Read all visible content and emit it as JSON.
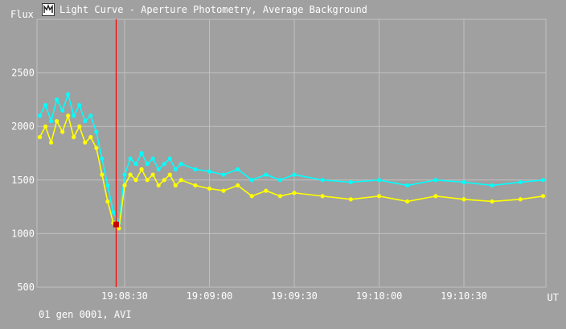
{
  "window": {
    "title": "Light Curve - Aperture Photometry, Average Background"
  },
  "footer": {
    "status": "01 gen 0001, AVI"
  },
  "colors": {
    "background": "#a0a0a0",
    "grid": "#c0c0c0",
    "series_primary": "#ffff00",
    "series_secondary": "#00ffff",
    "cursor_line": "#ff0000",
    "cursor_point": "#cc0000"
  },
  "chart_data": {
    "type": "scatter",
    "xlabel": "UT",
    "ylabel": "Flux",
    "x_ticks": [
      "19:08:30",
      "19:09:00",
      "19:09:30",
      "19:10:00",
      "19:10:30"
    ],
    "x_range": [
      "19:07:59",
      "19:10:59"
    ],
    "y_ticks": [
      500,
      1000,
      1500,
      2000,
      2500
    ],
    "ylim": [
      500,
      3000
    ],
    "grid": true,
    "cursor": {
      "time": "19:08:27",
      "flux": 1085
    },
    "series": [
      {
        "color": "#00ffff",
        "points": [
          [
            "19:08:00",
            2100
          ],
          [
            "19:08:02",
            2200
          ],
          [
            "19:08:04",
            2050
          ],
          [
            "19:08:06",
            2250
          ],
          [
            "19:08:08",
            2150
          ],
          [
            "19:08:10",
            2300
          ],
          [
            "19:08:12",
            2100
          ],
          [
            "19:08:14",
            2200
          ],
          [
            "19:08:16",
            2050
          ],
          [
            "19:08:18",
            2100
          ],
          [
            "19:08:20",
            1950
          ],
          [
            "19:08:22",
            1700
          ],
          [
            "19:08:24",
            1450
          ],
          [
            "19:08:26",
            1200
          ],
          [
            "19:08:28",
            1100
          ],
          [
            "19:08:30",
            1550
          ],
          [
            "19:08:32",
            1700
          ],
          [
            "19:08:34",
            1650
          ],
          [
            "19:08:36",
            1750
          ],
          [
            "19:08:38",
            1650
          ],
          [
            "19:08:40",
            1700
          ],
          [
            "19:08:42",
            1600
          ],
          [
            "19:08:44",
            1650
          ],
          [
            "19:08:46",
            1700
          ],
          [
            "19:08:48",
            1600
          ],
          [
            "19:08:50",
            1650
          ],
          [
            "19:08:55",
            1600
          ],
          [
            "19:09:00",
            1580
          ],
          [
            "19:09:05",
            1550
          ],
          [
            "19:09:10",
            1600
          ],
          [
            "19:09:15",
            1500
          ],
          [
            "19:09:20",
            1550
          ],
          [
            "19:09:25",
            1500
          ],
          [
            "19:09:30",
            1550
          ],
          [
            "19:09:40",
            1500
          ],
          [
            "19:09:50",
            1480
          ],
          [
            "19:10:00",
            1500
          ],
          [
            "19:10:10",
            1450
          ],
          [
            "19:10:20",
            1500
          ],
          [
            "19:10:30",
            1480
          ],
          [
            "19:10:40",
            1450
          ],
          [
            "19:10:50",
            1480
          ],
          [
            "19:10:58",
            1500
          ]
        ]
      },
      {
        "color": "#ffff00",
        "points": [
          [
            "19:08:00",
            1900
          ],
          [
            "19:08:02",
            2000
          ],
          [
            "19:08:04",
            1850
          ],
          [
            "19:08:06",
            2050
          ],
          [
            "19:08:08",
            1950
          ],
          [
            "19:08:10",
            2100
          ],
          [
            "19:08:12",
            1900
          ],
          [
            "19:08:14",
            2000
          ],
          [
            "19:08:16",
            1850
          ],
          [
            "19:08:18",
            1900
          ],
          [
            "19:08:20",
            1800
          ],
          [
            "19:08:22",
            1550
          ],
          [
            "19:08:24",
            1300
          ],
          [
            "19:08:26",
            1100
          ],
          [
            "19:08:28",
            1050
          ],
          [
            "19:08:30",
            1450
          ],
          [
            "19:08:32",
            1550
          ],
          [
            "19:08:34",
            1500
          ],
          [
            "19:08:36",
            1600
          ],
          [
            "19:08:38",
            1500
          ],
          [
            "19:08:40",
            1550
          ],
          [
            "19:08:42",
            1450
          ],
          [
            "19:08:44",
            1500
          ],
          [
            "19:08:46",
            1550
          ],
          [
            "19:08:48",
            1450
          ],
          [
            "19:08:50",
            1500
          ],
          [
            "19:08:55",
            1450
          ],
          [
            "19:09:00",
            1420
          ],
          [
            "19:09:05",
            1400
          ],
          [
            "19:09:10",
            1450
          ],
          [
            "19:09:15",
            1350
          ],
          [
            "19:09:20",
            1400
          ],
          [
            "19:09:25",
            1350
          ],
          [
            "19:09:30",
            1380
          ],
          [
            "19:09:40",
            1350
          ],
          [
            "19:09:50",
            1320
          ],
          [
            "19:10:00",
            1350
          ],
          [
            "19:10:10",
            1300
          ],
          [
            "19:10:20",
            1350
          ],
          [
            "19:10:30",
            1320
          ],
          [
            "19:10:40",
            1300
          ],
          [
            "19:10:50",
            1320
          ],
          [
            "19:10:58",
            1350
          ]
        ]
      }
    ]
  }
}
